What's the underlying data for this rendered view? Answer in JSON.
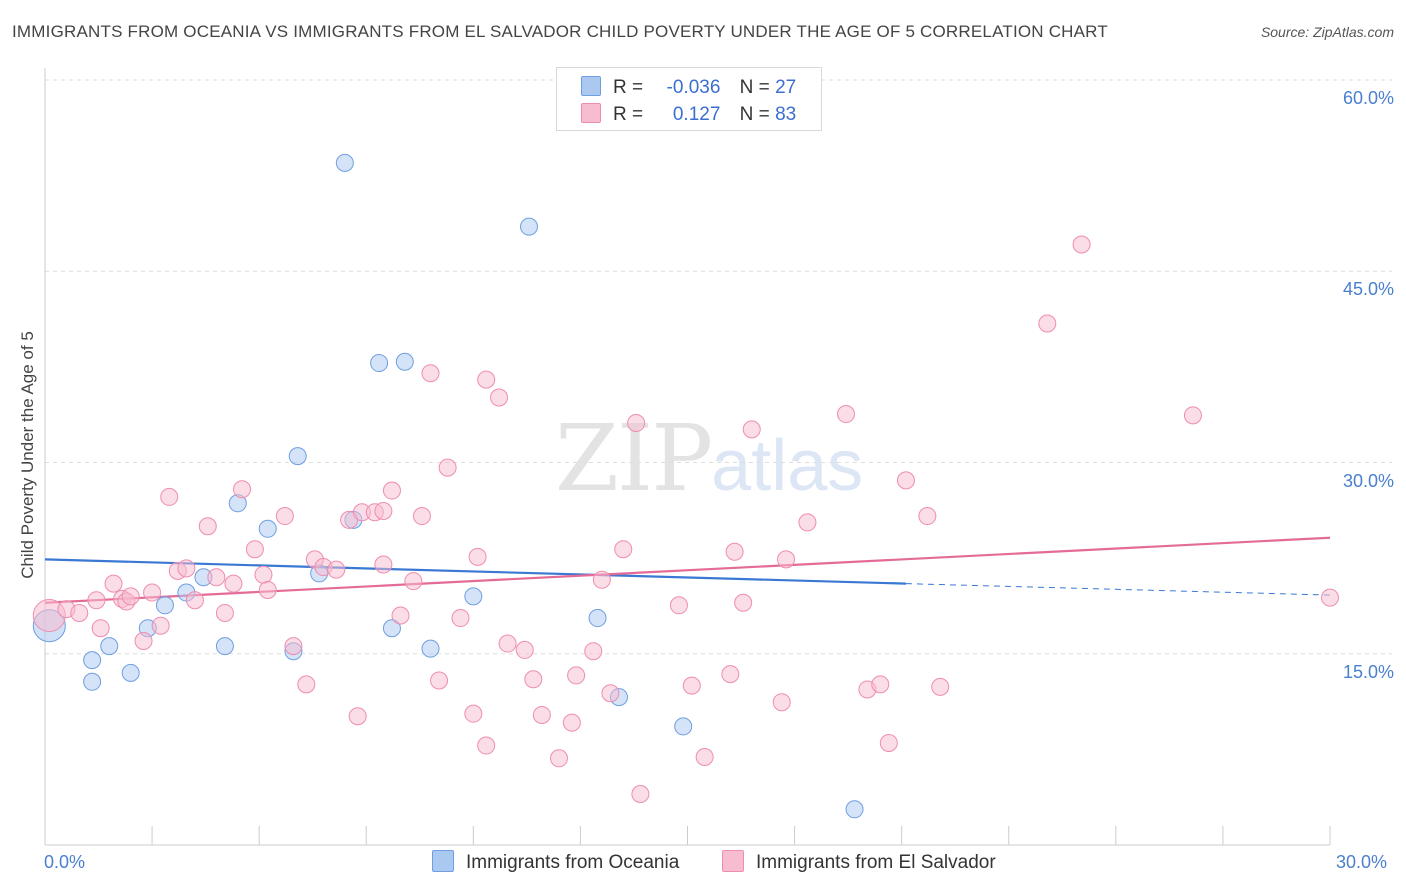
{
  "title": "IMMIGRANTS FROM OCEANIA VS IMMIGRANTS FROM EL SALVADOR CHILD POVERTY UNDER THE AGE OF 5 CORRELATION CHART",
  "source": "Source: ZipAtlas.com",
  "watermark": {
    "zip": "ZIP",
    "atlas": "atlas"
  },
  "stats": {
    "rows": [
      {
        "r_label": "R =",
        "r_value": "-0.036",
        "n_label": "N =",
        "n_value": "27",
        "color": "#aac8f0"
      },
      {
        "r_label": "R =",
        "r_value": "0.127",
        "n_label": "N =",
        "n_value": "83",
        "color": "#f7bcd0"
      }
    ]
  },
  "legend": [
    {
      "label": "Immigrants from Oceania",
      "color": "#aac8f0"
    },
    {
      "label": "Immigrants from El Salvador",
      "color": "#f7bcd0"
    }
  ],
  "chart_data": {
    "type": "scatter",
    "title": "IMMIGRANTS FROM OCEANIA VS IMMIGRANTS FROM EL SALVADOR CHILD POVERTY UNDER THE AGE OF 5 CORRELATION CHART",
    "xlabel": "",
    "ylabel": "Child Poverty Under the Age of 5",
    "xlim": [
      0,
      30
    ],
    "ylim": [
      0,
      60
    ],
    "x_ticks": [
      "0.0%",
      "30.0%"
    ],
    "y_ticks": [
      {
        "value": 15,
        "label": "15.0%"
      },
      {
        "value": 30,
        "label": "30.0%"
      },
      {
        "value": 45,
        "label": "45.0%"
      },
      {
        "value": 60,
        "label": "60.0%"
      }
    ],
    "grid": true,
    "series": [
      {
        "name": "Immigrants from Oceania",
        "color": "#aac8f0",
        "stroke": "#6f9fe0",
        "trend_color": "#3a78d4",
        "trend": {
          "x0": 0,
          "y0": 22.4,
          "x1": 20.1,
          "y1": 20.5,
          "dash_x1": 30,
          "dash_y1": 19.6
        },
        "points": [
          [
            0.1,
            17.2,
            "big"
          ],
          [
            1.1,
            14.5
          ],
          [
            1.1,
            12.8
          ],
          [
            1.5,
            15.6
          ],
          [
            2.0,
            13.5
          ],
          [
            2.4,
            17.0
          ],
          [
            2.8,
            18.8
          ],
          [
            3.3,
            19.8
          ],
          [
            3.7,
            21.0
          ],
          [
            4.2,
            15.6
          ],
          [
            4.5,
            26.8
          ],
          [
            5.2,
            24.8
          ],
          [
            5.8,
            15.2
          ],
          [
            5.9,
            30.5
          ],
          [
            6.4,
            21.3
          ],
          [
            7.0,
            53.5
          ],
          [
            7.2,
            25.5
          ],
          [
            7.8,
            37.8
          ],
          [
            8.1,
            17.0
          ],
          [
            8.4,
            37.9
          ],
          [
            9.0,
            15.4
          ],
          [
            10.0,
            19.5
          ],
          [
            11.3,
            48.5
          ],
          [
            12.9,
            17.8
          ],
          [
            13.4,
            11.6
          ],
          [
            14.9,
            9.3
          ],
          [
            18.9,
            2.8
          ]
        ]
      },
      {
        "name": "Immigrants from El Salvador",
        "color": "#f7bcd0",
        "stroke": "#ee8db0",
        "trend_color": "#e46b97",
        "trend": {
          "x0": 0,
          "y0": 19.0,
          "x1": 30,
          "y1": 24.1
        },
        "points": [
          [
            0.1,
            18.0,
            "big"
          ],
          [
            0.5,
            18.5
          ],
          [
            0.8,
            18.2
          ],
          [
            1.2,
            19.2
          ],
          [
            1.3,
            17.0
          ],
          [
            1.6,
            20.5
          ],
          [
            1.8,
            19.3
          ],
          [
            1.9,
            19.1
          ],
          [
            2.0,
            19.5
          ],
          [
            2.3,
            16.0
          ],
          [
            2.5,
            19.8
          ],
          [
            2.7,
            17.2
          ],
          [
            2.9,
            27.3
          ],
          [
            3.1,
            21.5
          ],
          [
            3.3,
            21.7
          ],
          [
            3.5,
            19.2
          ],
          [
            3.8,
            25.0
          ],
          [
            4.0,
            21.0
          ],
          [
            4.2,
            18.2
          ],
          [
            4.4,
            20.5
          ],
          [
            4.6,
            27.9
          ],
          [
            4.9,
            23.2
          ],
          [
            5.1,
            21.2
          ],
          [
            5.2,
            20.0
          ],
          [
            5.6,
            25.8
          ],
          [
            5.8,
            15.6
          ],
          [
            6.1,
            12.6
          ],
          [
            6.3,
            22.4
          ],
          [
            6.5,
            21.8
          ],
          [
            6.8,
            21.6
          ],
          [
            7.1,
            25.5
          ],
          [
            7.3,
            10.1
          ],
          [
            7.4,
            26.1
          ],
          [
            7.7,
            26.1
          ],
          [
            7.9,
            26.2
          ],
          [
            7.9,
            22.0
          ],
          [
            8.1,
            27.8
          ],
          [
            8.3,
            18.0
          ],
          [
            8.6,
            20.7
          ],
          [
            8.8,
            25.8
          ],
          [
            9.0,
            37.0
          ],
          [
            9.2,
            12.9
          ],
          [
            9.4,
            29.6
          ],
          [
            9.7,
            17.8
          ],
          [
            10.0,
            10.3
          ],
          [
            10.1,
            22.6
          ],
          [
            10.3,
            7.8
          ],
          [
            10.3,
            36.5
          ],
          [
            10.6,
            35.1
          ],
          [
            10.8,
            15.8
          ],
          [
            11.2,
            15.3
          ],
          [
            11.4,
            13.0
          ],
          [
            11.6,
            10.2
          ],
          [
            12.0,
            6.8
          ],
          [
            12.3,
            9.6
          ],
          [
            12.4,
            13.3
          ],
          [
            12.8,
            15.2
          ],
          [
            13.0,
            20.8
          ],
          [
            13.2,
            11.9
          ],
          [
            13.5,
            23.2
          ],
          [
            13.8,
            33.1
          ],
          [
            13.9,
            4.0
          ],
          [
            14.8,
            18.8
          ],
          [
            15.1,
            12.5
          ],
          [
            15.4,
            6.9
          ],
          [
            16.0,
            13.4
          ],
          [
            16.1,
            23.0
          ],
          [
            16.3,
            19.0
          ],
          [
            16.5,
            32.6
          ],
          [
            17.2,
            11.2
          ],
          [
            17.3,
            22.4
          ],
          [
            17.8,
            25.3
          ],
          [
            18.7,
            33.8
          ],
          [
            19.2,
            12.2
          ],
          [
            19.5,
            12.6
          ],
          [
            19.7,
            8.0
          ],
          [
            20.1,
            28.6
          ],
          [
            20.6,
            25.8
          ],
          [
            20.9,
            12.4
          ],
          [
            23.4,
            40.9
          ],
          [
            24.2,
            47.1
          ],
          [
            26.8,
            33.7
          ],
          [
            30.0,
            19.4
          ]
        ]
      }
    ]
  }
}
